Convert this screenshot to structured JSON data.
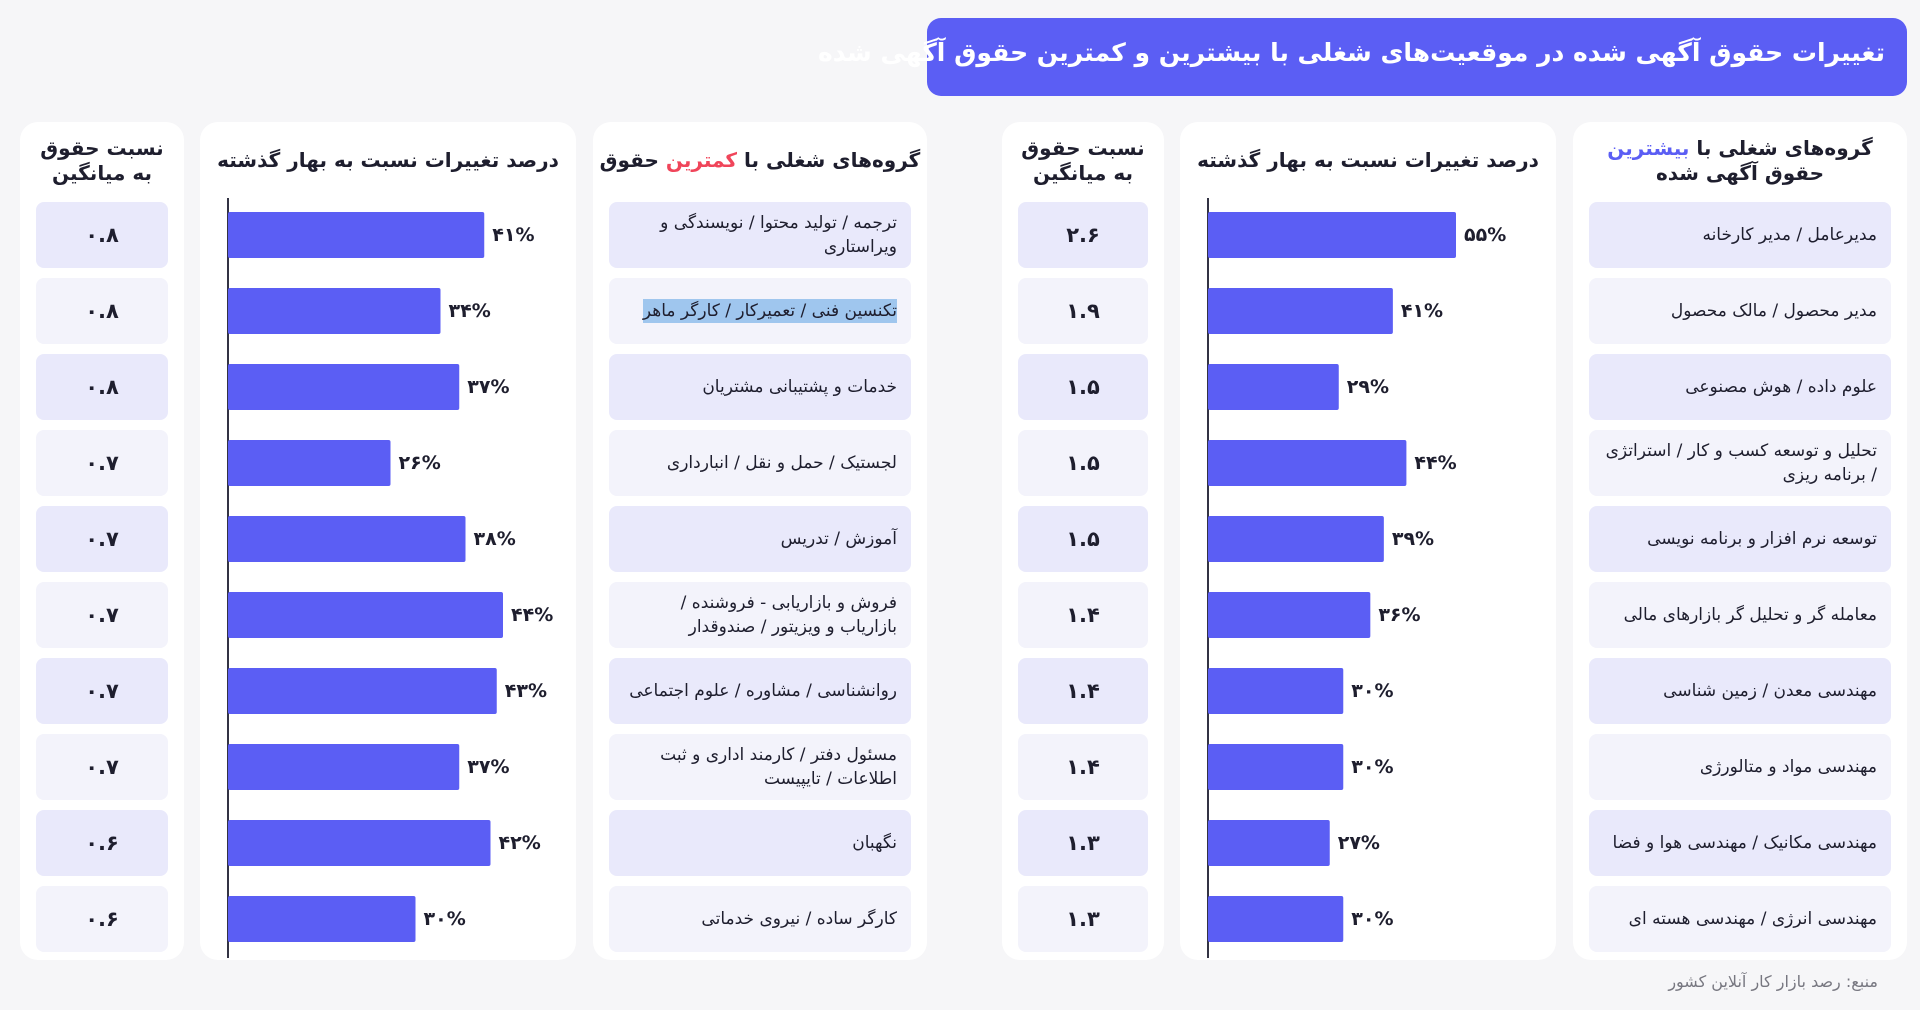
{
  "title": "تغییرات حقوق آگهی شده در موقعیت‌های شغلی با بیشترین و کمترین حقوق آگهی شده",
  "source": "منبع: رصد بازار کار آنلاین کشور",
  "highest": {
    "header_groups_pre": "گروه‌های شغلی با ",
    "header_groups_hl": "بیشترین",
    "header_groups_post": " حقوق آگهی شده",
    "header_change": "درصد تغییرات نسبت به بهار گذشته",
    "header_ratio": "نسبت حقوق به میانگین",
    "accent_color": "#5b5ef4"
  },
  "lowest": {
    "header_groups_pre": "گروه‌های شغلی با ",
    "header_groups_hl": "کمترین",
    "header_groups_post": " حقوق",
    "header_change": "درصد تغییرات نسبت به بهار گذشته",
    "header_ratio": "نسبت حقوق به میانگین",
    "accent_color": "#f0455a"
  },
  "chart_data": [
    {
      "type": "bar",
      "orientation": "horizontal",
      "name_hint": "highest",
      "categories": [
        "مدیرعامل / مدیر کارخانه",
        "مدیر محصول / مالک محصول",
        "علوم داده / هوش مصنوعی",
        "تحلیل و توسعه کسب و کار / استراتژی / برنامه ریزی",
        "توسعه نرم افزار و برنامه نویسی",
        "معامله گر و تحلیل گر بازارهای مالی",
        "مهندسی معدن / زمین شناسی",
        "مهندسی مواد و متالورژی",
        "مهندسی مکانیک / مهندسی هوا و فضا",
        "مهندسی انرژی / مهندسی هسته ای"
      ],
      "values": [
        55,
        41,
        29,
        44,
        39,
        36,
        30,
        30,
        27,
        30
      ],
      "value_labels": [
        "۵۵%",
        "۴۱%",
        "۲۹%",
        "۴۴%",
        "۳۹%",
        "۳۶%",
        "۳۰%",
        "۳۰%",
        "۲۷%",
        "۳۰%"
      ],
      "ratios": [
        "۲.۶",
        "۱.۹",
        "۱.۵",
        "۱.۵",
        "۱.۵",
        "۱.۴",
        "۱.۴",
        "۱.۴",
        "۱.۳",
        "۱.۳"
      ],
      "ratio_values": [
        2.6,
        1.9,
        1.5,
        1.5,
        1.5,
        1.4,
        1.4,
        1.4,
        1.3,
        1.3
      ],
      "bar_color": "#5b5ef4",
      "xlim": [
        0,
        55
      ]
    },
    {
      "type": "bar",
      "orientation": "horizontal",
      "name_hint": "lowest",
      "categories": [
        "ترجمه / تولید محتوا / نویسندگی و ویراستاری",
        "تکنسین فنی / تعمیرکار / کارگر ماهر",
        "خدمات و پشتیبانی مشتریان",
        "لجستیک / حمل و نقل / انبارداری",
        "آموزش / تدریس",
        "فروش و بازاریابی - فروشنده / بازاریاب و ویزیتور / صندوقدار",
        "روانشناسی / مشاوره / علوم اجتماعی",
        "مسئول دفتر / کارمند اداری و ثبت اطلاعات / تایپیست",
        "نگهبان",
        "کارگر ساده / نیروی خدماتی"
      ],
      "values": [
        41,
        34,
        37,
        26,
        38,
        44,
        43,
        37,
        42,
        30
      ],
      "value_labels": [
        "۴۱%",
        "۳۴%",
        "۳۷%",
        "۲۶%",
        "۳۸%",
        "۴۴%",
        "۴۳%",
        "۳۷%",
        "۴۲%",
        "۳۰%"
      ],
      "ratios": [
        "۰.۸",
        "۰.۸",
        "۰.۸",
        "۰.۷",
        "۰.۷",
        "۰.۷",
        "۰.۷",
        "۰.۷",
        "۰.۶",
        "۰.۶"
      ],
      "ratio_values": [
        0.8,
        0.8,
        0.8,
        0.7,
        0.7,
        0.7,
        0.7,
        0.7,
        0.6,
        0.6
      ],
      "bar_color": "#5b5ef4",
      "xlim": [
        0,
        44
      ]
    }
  ]
}
